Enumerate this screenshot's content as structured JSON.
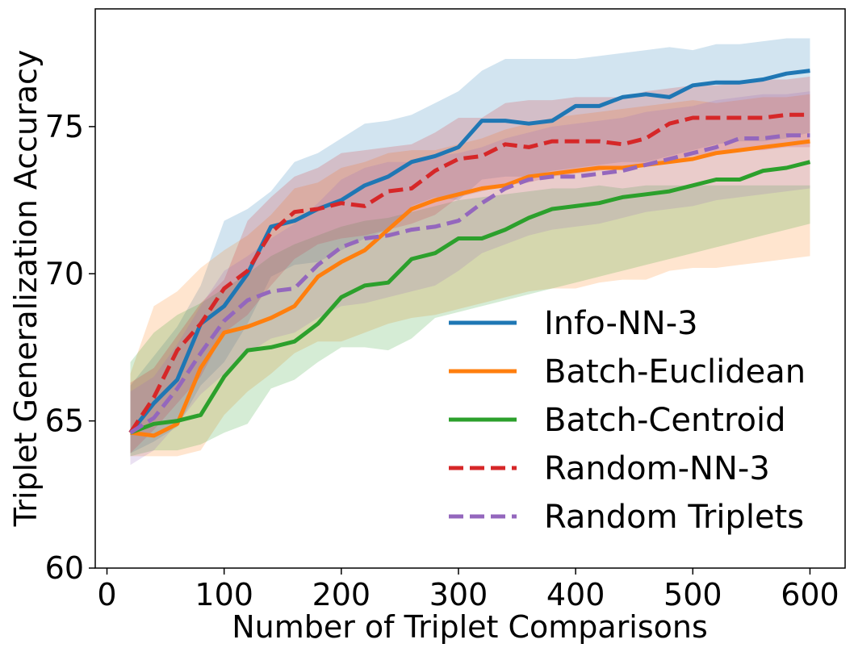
{
  "chart_data": {
    "type": "line",
    "title": "",
    "xlabel": "Number of Triplet Comparisons",
    "ylabel": "Triplet Generalization Accuracy",
    "xlim": [
      -10,
      630
    ],
    "ylim": [
      60,
      79
    ],
    "xticks": [
      0,
      100,
      200,
      300,
      400,
      500,
      600
    ],
    "yticks": [
      60,
      65,
      70,
      75
    ],
    "legend_position": "lower-right",
    "x": [
      20,
      40,
      60,
      80,
      100,
      120,
      140,
      160,
      180,
      200,
      220,
      240,
      260,
      280,
      300,
      320,
      340,
      360,
      380,
      400,
      420,
      440,
      460,
      480,
      500,
      520,
      540,
      560,
      580,
      600
    ],
    "series": [
      {
        "name": "Info-NN-3",
        "color": "#1f77b4",
        "dashed": false,
        "values": [
          64.6,
          65.6,
          66.4,
          68.3,
          68.9,
          70.0,
          71.6,
          71.8,
          72.2,
          72.5,
          73.0,
          73.3,
          73.8,
          74.0,
          74.3,
          75.2,
          75.2,
          75.1,
          75.2,
          75.7,
          75.7,
          76.0,
          76.1,
          76.0,
          76.4,
          76.5,
          76.5,
          76.6,
          76.8,
          76.9
        ],
        "upper": [
          66.2,
          67.2,
          68.2,
          69.6,
          71.8,
          72.2,
          72.8,
          73.8,
          74.1,
          74.6,
          75.1,
          75.2,
          75.4,
          75.8,
          76.2,
          76.9,
          77.3,
          77.3,
          77.3,
          77.3,
          77.4,
          77.5,
          77.6,
          77.7,
          77.6,
          77.8,
          77.8,
          77.9,
          78.0,
          78.0
        ],
        "lower": [
          63.9,
          64.3,
          64.8,
          66.2,
          67.0,
          68.3,
          69.9,
          70.3,
          70.4,
          70.8,
          71.2,
          71.5,
          72.3,
          72.6,
          72.5,
          73.2,
          73.3,
          73.3,
          73.5,
          73.6,
          73.7,
          73.8,
          73.8,
          74.0,
          74.2,
          74.4,
          74.5,
          74.5,
          74.6,
          74.8
        ]
      },
      {
        "name": "Batch-Euclidean",
        "color": "#ff7f0e",
        "dashed": false,
        "values": [
          64.6,
          64.5,
          64.9,
          66.8,
          68.0,
          68.2,
          68.5,
          68.9,
          69.9,
          70.4,
          70.8,
          71.5,
          72.2,
          72.5,
          72.7,
          72.9,
          73.0,
          73.3,
          73.4,
          73.5,
          73.6,
          73.6,
          73.7,
          73.8,
          73.9,
          74.1,
          74.2,
          74.3,
          74.4,
          74.5
        ],
        "upper": [
          66.6,
          68.9,
          69.4,
          70.2,
          70.8,
          71.3,
          72.0,
          72.9,
          73.1,
          73.6,
          73.8,
          74.1,
          74.2,
          74.2,
          74.4,
          74.6,
          74.9,
          75.1,
          75.3,
          75.4,
          75.5,
          75.6,
          75.7,
          75.8,
          75.9,
          75.8,
          75.9,
          76.0,
          76.0,
          76.1
        ],
        "lower": [
          63.8,
          63.8,
          63.8,
          64.0,
          65.2,
          66.0,
          66.6,
          67.3,
          67.7,
          67.7,
          68.0,
          68.3,
          68.5,
          68.6,
          68.8,
          69.0,
          69.2,
          69.4,
          69.5,
          69.5,
          69.7,
          69.8,
          69.8,
          70.1,
          70.2,
          70.2,
          70.3,
          70.4,
          70.5,
          70.6
        ]
      },
      {
        "name": "Batch-Centroid",
        "color": "#2ca02c",
        "dashed": false,
        "values": [
          64.6,
          64.9,
          65.0,
          65.2,
          66.5,
          67.4,
          67.5,
          67.7,
          68.3,
          69.2,
          69.6,
          69.7,
          70.5,
          70.7,
          71.2,
          71.2,
          71.5,
          71.9,
          72.2,
          72.3,
          72.4,
          72.6,
          72.7,
          72.8,
          73.0,
          73.2,
          73.2,
          73.5,
          73.6,
          73.8
        ],
        "upper": [
          67.0,
          68.0,
          68.6,
          69.0,
          69.5,
          70.0,
          70.6,
          71.0,
          71.3,
          71.6,
          71.8,
          71.9,
          72.1,
          72.3,
          72.5,
          72.6,
          72.7,
          72.8,
          72.9,
          72.9,
          73.0,
          72.9,
          73.0,
          73.0,
          73.0,
          73.0,
          73.0,
          73.0,
          73.0,
          73.0
        ],
        "lower": [
          63.8,
          64.0,
          64.0,
          64.2,
          64.6,
          64.9,
          66.1,
          66.4,
          67.0,
          67.5,
          67.5,
          67.4,
          67.8,
          68.5,
          68.7,
          68.9,
          69.1,
          69.3,
          69.5,
          69.7,
          69.9,
          70.1,
          70.3,
          70.5,
          70.7,
          70.9,
          71.1,
          71.3,
          71.5,
          71.7
        ]
      },
      {
        "name": "Random-NN-3",
        "color": "#d62728",
        "dashed": true,
        "values": [
          64.6,
          65.8,
          67.4,
          68.3,
          69.5,
          70.1,
          71.4,
          72.1,
          72.2,
          72.4,
          72.3,
          72.8,
          72.9,
          73.5,
          73.9,
          74.0,
          74.4,
          74.3,
          74.5,
          74.5,
          74.5,
          74.4,
          74.6,
          75.1,
          75.3,
          75.3,
          75.3,
          75.3,
          75.4,
          75.4
        ],
        "upper": [
          66.3,
          66.8,
          67.9,
          69.0,
          69.8,
          71.8,
          72.6,
          73.3,
          73.6,
          74.1,
          74.2,
          74.3,
          74.4,
          74.8,
          75.3,
          75.3,
          75.8,
          75.9,
          75.9,
          76.0,
          76.0,
          76.0,
          76.2,
          76.3,
          76.4,
          76.4,
          76.5,
          76.6,
          76.6,
          76.7
        ],
        "lower": [
          63.9,
          64.7,
          65.6,
          66.5,
          68.0,
          68.6,
          69.6,
          70.5,
          71.0,
          71.2,
          71.3,
          71.5,
          71.7,
          72.0,
          72.6,
          72.8,
          73.0,
          73.1,
          73.3,
          73.4,
          73.5,
          73.6,
          73.7,
          73.8,
          74.0,
          74.1,
          74.2,
          74.2,
          74.3,
          74.3
        ]
      },
      {
        "name": "Random Triplets",
        "color": "#9467bd",
        "dashed": true,
        "values": [
          64.6,
          65.1,
          66.1,
          67.3,
          68.4,
          69.1,
          69.4,
          69.5,
          70.3,
          70.9,
          71.2,
          71.3,
          71.5,
          71.6,
          71.8,
          72.4,
          72.9,
          73.2,
          73.3,
          73.3,
          73.4,
          73.5,
          73.7,
          73.9,
          74.1,
          74.3,
          74.6,
          74.6,
          74.7,
          74.7
        ],
        "upper": [
          66.0,
          66.5,
          67.6,
          68.9,
          70.1,
          70.6,
          71.2,
          71.7,
          72.4,
          73.2,
          73.6,
          73.8,
          73.8,
          74.0,
          74.1,
          74.3,
          74.6,
          74.8,
          75.0,
          75.1,
          75.2,
          75.3,
          75.5,
          75.6,
          75.7,
          75.9,
          76.0,
          76.1,
          76.1,
          76.2
        ],
        "lower": [
          63.5,
          64.0,
          64.9,
          65.9,
          66.6,
          67.3,
          67.8,
          68.0,
          68.5,
          68.9,
          69.0,
          69.2,
          69.4,
          69.6,
          70.1,
          70.7,
          71.0,
          71.3,
          71.5,
          71.6,
          71.7,
          71.9,
          72.1,
          72.2,
          72.3,
          72.5,
          72.6,
          72.7,
          72.8,
          72.9
        ]
      }
    ]
  }
}
